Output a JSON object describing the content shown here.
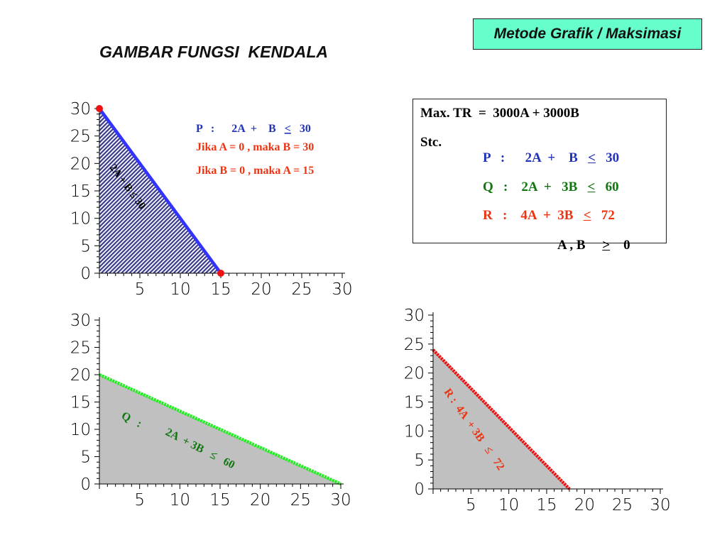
{
  "header": {
    "badge": "Metode Grafik / Maksimasi",
    "title": "GAMBAR FUNGSI  KENDALA"
  },
  "model": {
    "objective": "Max. TR  =  3000A + 3000B",
    "stc_label": "Stc.",
    "constraints": [
      {
        "name": "P",
        "lhs": "2A  +    B",
        "op": "<",
        "rhs": "30",
        "color": "#2233bb"
      },
      {
        "name": "Q",
        "lhs": "2A  +   3B",
        "op": "<",
        "rhs": "60",
        "color": "#117711"
      },
      {
        "name": "R",
        "lhs": "4A  +  3B",
        "op": "<",
        "rhs": "72",
        "color": "#ee3311"
      }
    ],
    "nonneg_lhs": "A , B",
    "nonneg_op": ">",
    "nonneg_rhs": "0"
  },
  "annotations": {
    "p_eq": "P   :      2A  +    B   ",
    "p_op": "<",
    "p_rhs": "30",
    "p_case1": "Jika A = 0 , maka B = 30",
    "p_case2": "Jika B = 0 , maka A = 15",
    "p_inside": "2A  +  B   ≤  30",
    "q_inside_name": "Q   :",
    "q_inside": "2A  + 3B   ≤   60",
    "r_inside": "R :  4A  + 3B   ≤   72"
  },
  "colors": {
    "p_line": "#3333ff",
    "p_fill": "#3a3a8c",
    "q_line": "#22ee22",
    "r_line": "#ee1111",
    "region_fill": "#c0c0c0",
    "point": "#ee1111",
    "badge_bg": "#66ffcc"
  },
  "chart_data": [
    {
      "type": "area",
      "name": "P",
      "xlim": [
        0,
        30
      ],
      "ylim": [
        0,
        30
      ],
      "x_ticks": [
        5,
        10,
        15,
        20,
        25,
        30
      ],
      "y_ticks": [
        0,
        5,
        10,
        15,
        20,
        25,
        30
      ],
      "line": {
        "x": [
          0,
          15
        ],
        "y": [
          30,
          0
        ]
      },
      "points": [
        {
          "x": 0,
          "y": 30
        },
        {
          "x": 15,
          "y": 0
        }
      ],
      "region": "hatched"
    },
    {
      "type": "area",
      "name": "Q",
      "xlim": [
        0,
        30
      ],
      "ylim": [
        0,
        30
      ],
      "x_ticks": [
        5,
        10,
        15,
        20,
        25,
        30
      ],
      "y_ticks": [
        0,
        5,
        10,
        15,
        20,
        25,
        30
      ],
      "line": {
        "x": [
          0,
          30
        ],
        "y": [
          20,
          0
        ]
      },
      "region": "solid"
    },
    {
      "type": "area",
      "name": "R",
      "xlim": [
        0,
        30
      ],
      "ylim": [
        0,
        30
      ],
      "x_ticks": [
        5,
        10,
        15,
        20,
        25,
        30
      ],
      "y_ticks": [
        0,
        5,
        10,
        15,
        20,
        25,
        30
      ],
      "line": {
        "x": [
          0,
          18
        ],
        "y": [
          24,
          0
        ]
      },
      "region": "solid"
    }
  ]
}
